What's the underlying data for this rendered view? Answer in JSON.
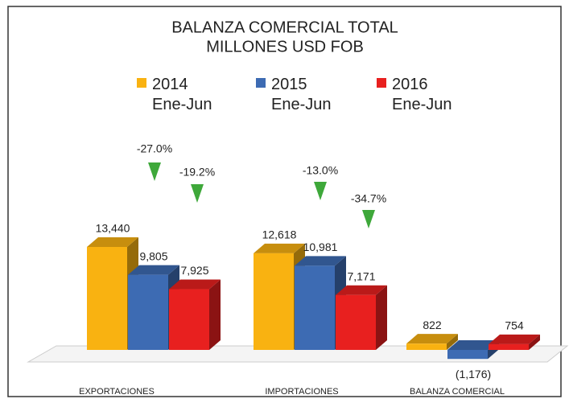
{
  "chart_data": {
    "type": "bar3d",
    "title": "BALANZA COMERCIAL TOTAL",
    "subtitle": "MILLONES USD FOB",
    "categories": [
      "EXPORTACIONES",
      "IMPORTACIONES",
      "BALANZA COMERCIAL"
    ],
    "series": [
      {
        "name": "2014 Ene-Jun",
        "color": "#f9b211",
        "values": [
          13440,
          12618,
          822
        ],
        "value_labels": [
          "13,440",
          "12,618",
          "822"
        ]
      },
      {
        "name": "2015 Ene-Jun",
        "color": "#3d6bb3",
        "values": [
          9805,
          10981,
          -1176
        ],
        "value_labels": [
          "9,805",
          "10,981",
          "(1,176)"
        ]
      },
      {
        "name": "2016 Ene-Jun",
        "color": "#e8201f",
        "values": [
          7925,
          7171,
          754
        ],
        "value_labels": [
          "7,925",
          "7,171",
          "754"
        ]
      }
    ],
    "annotations": [
      {
        "value": -27.0,
        "label": "-27.0%"
      },
      {
        "value": -19.2,
        "label": "-19.2%"
      },
      {
        "value": -13.0,
        "label": "-13.0%"
      },
      {
        "value": -34.7,
        "label": "-34.7%"
      }
    ]
  }
}
